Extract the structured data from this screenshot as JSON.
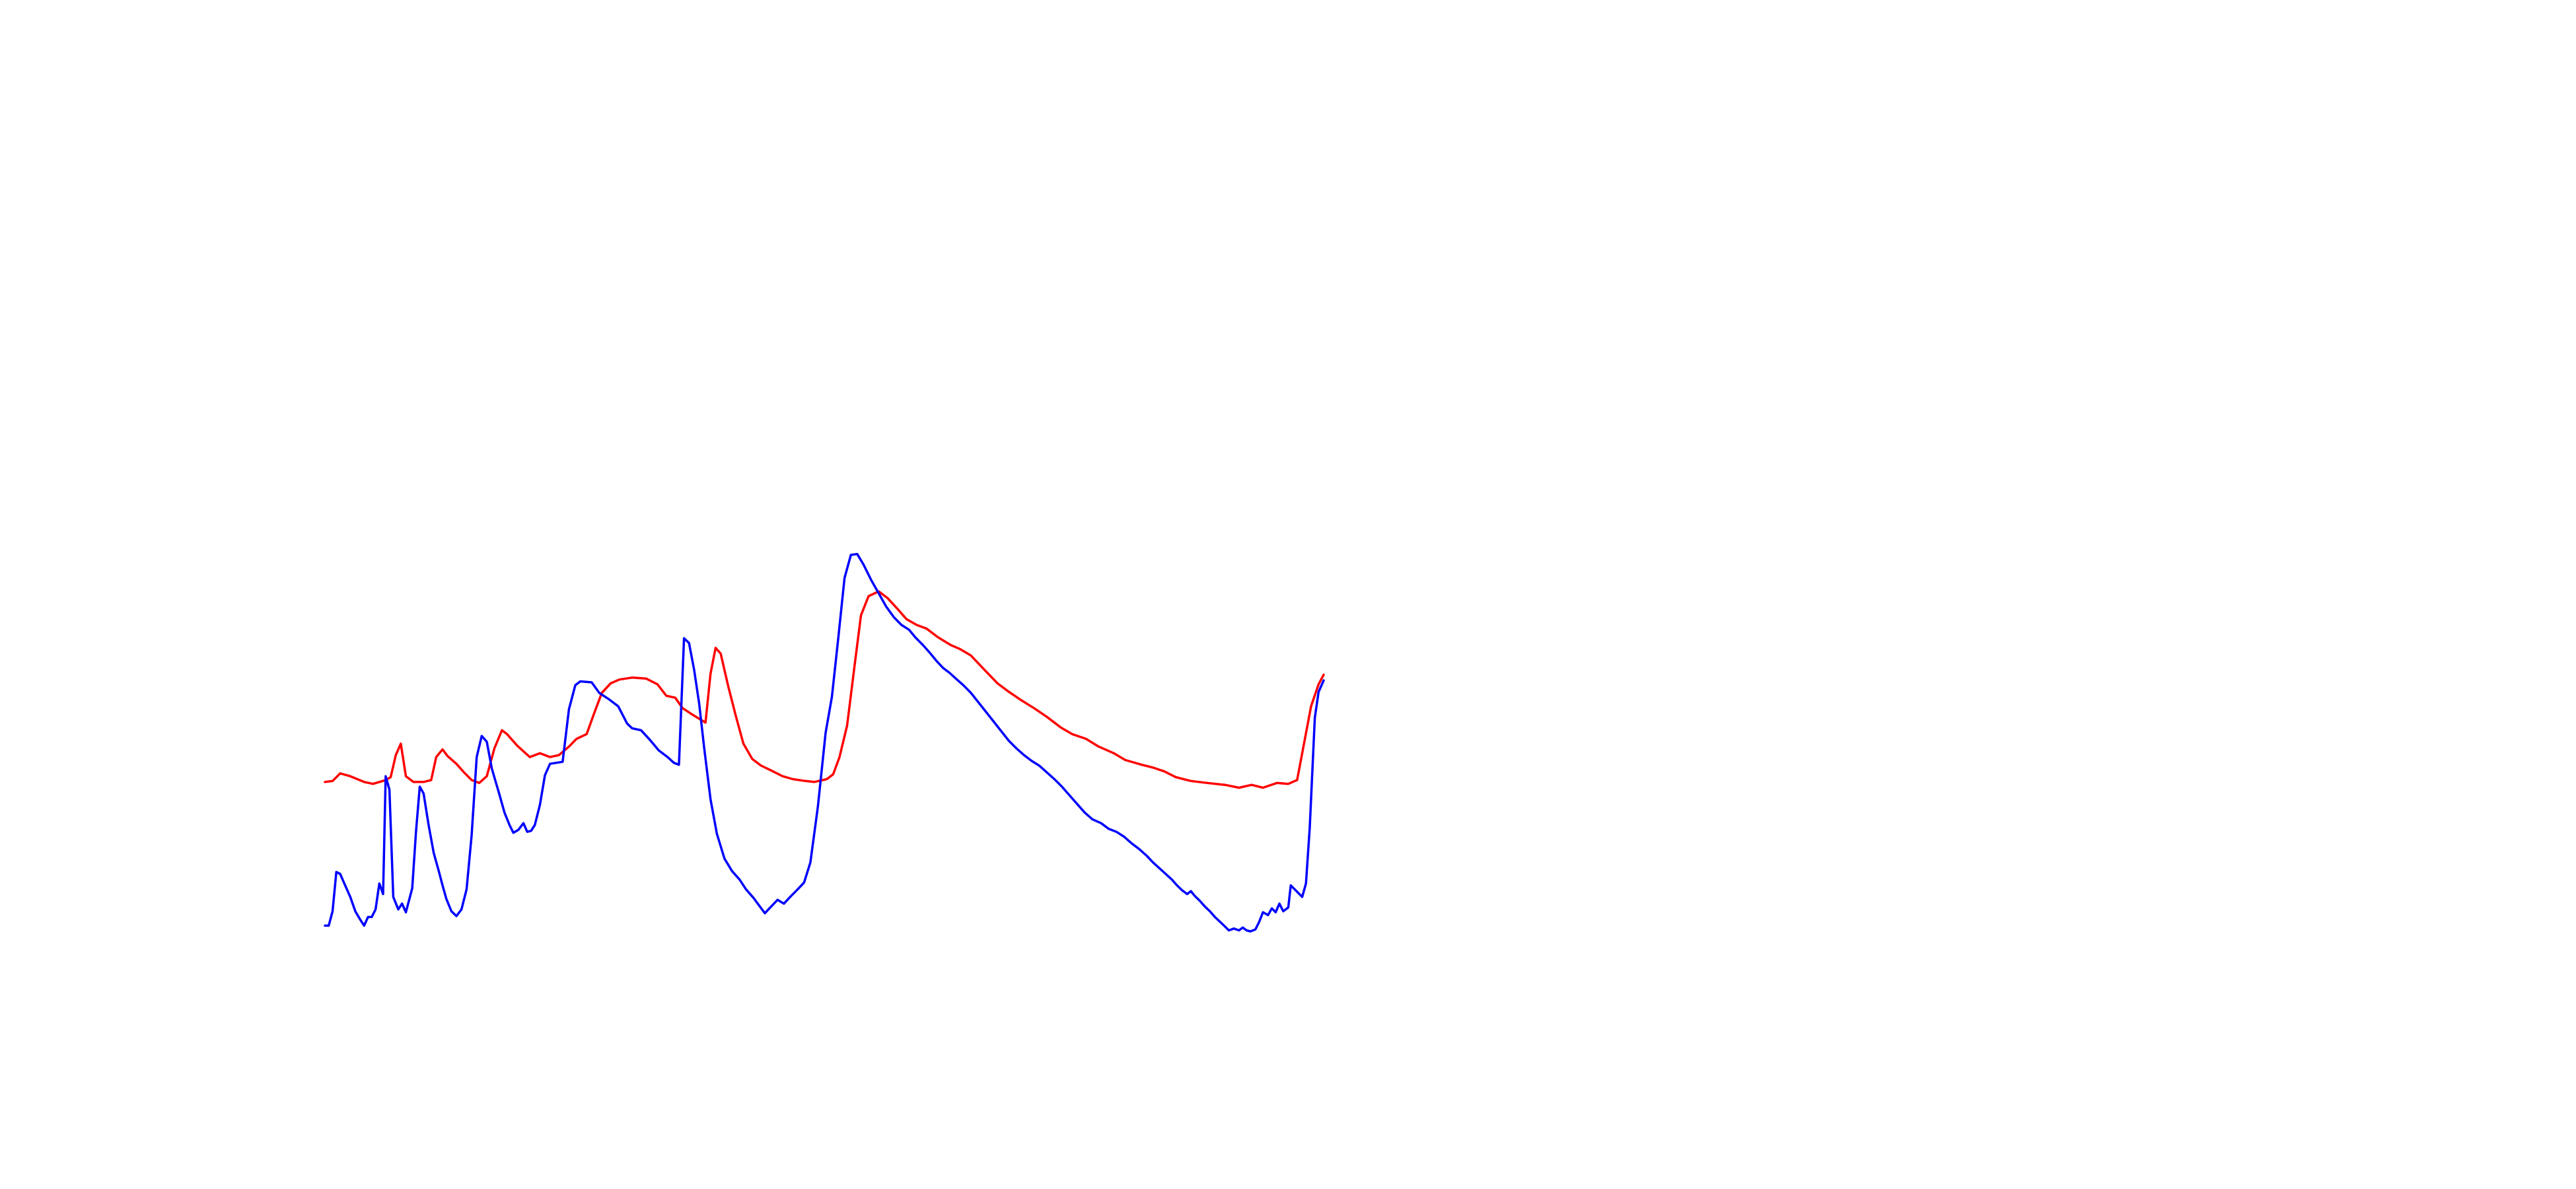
{
  "chart_data": {
    "type": "line",
    "grid": false,
    "legend": "none",
    "x_range": [
      0,
      100
    ],
    "y_range": [
      0,
      100
    ],
    "series": [
      {
        "color": "#ff0000",
        "points": [
          [
            0,
            15.6
          ],
          [
            0.6,
            15.7
          ],
          [
            1.2,
            16.5
          ],
          [
            2.0,
            16.2
          ],
          [
            3.1,
            15.6
          ],
          [
            3.8,
            15.4
          ],
          [
            4.8,
            15.8
          ],
          [
            5.2,
            16.1
          ],
          [
            5.6,
            18.4
          ],
          [
            6.0,
            19.6
          ],
          [
            6.4,
            16.2
          ],
          [
            7.0,
            15.6
          ],
          [
            7.8,
            15.6
          ],
          [
            8.4,
            15.8
          ],
          [
            8.8,
            18.2
          ],
          [
            9.3,
            19.0
          ],
          [
            9.7,
            18.3
          ],
          [
            10.4,
            17.5
          ],
          [
            11.0,
            16.6
          ],
          [
            11.6,
            15.8
          ],
          [
            12.2,
            15.5
          ],
          [
            12.8,
            16.2
          ],
          [
            13.4,
            19.1
          ],
          [
            14.0,
            21.0
          ],
          [
            14.4,
            20.6
          ],
          [
            15.2,
            19.4
          ],
          [
            16.2,
            18.2
          ],
          [
            17.0,
            18.6
          ],
          [
            17.8,
            18.2
          ],
          [
            18.5,
            18.4
          ],
          [
            19.3,
            19.3
          ],
          [
            19.9,
            20.1
          ],
          [
            20.7,
            20.6
          ],
          [
            21.3,
            22.8
          ],
          [
            21.9,
            24.9
          ],
          [
            22.6,
            25.9
          ],
          [
            23.3,
            26.3
          ],
          [
            24.3,
            26.5
          ],
          [
            25.4,
            26.4
          ],
          [
            26.3,
            25.8
          ],
          [
            27.0,
            24.6
          ],
          [
            27.7,
            24.4
          ],
          [
            28.3,
            23.3
          ],
          [
            29.1,
            22.6
          ],
          [
            30.1,
            21.8
          ],
          [
            30.5,
            26.9
          ],
          [
            30.9,
            29.6
          ],
          [
            31.3,
            29.0
          ],
          [
            31.9,
            25.6
          ],
          [
            32.5,
            22.5
          ],
          [
            33.1,
            19.6
          ],
          [
            33.8,
            18.0
          ],
          [
            34.5,
            17.3
          ],
          [
            35.3,
            16.8
          ],
          [
            36.2,
            16.2
          ],
          [
            37.0,
            15.9
          ],
          [
            38.0,
            15.7
          ],
          [
            38.7,
            15.6
          ],
          [
            39.7,
            15.9
          ],
          [
            40.2,
            16.4
          ],
          [
            40.7,
            18.2
          ],
          [
            41.3,
            21.5
          ],
          [
            41.9,
            27.8
          ],
          [
            42.4,
            33.0
          ],
          [
            43.0,
            35.0
          ],
          [
            43.8,
            35.5
          ],
          [
            44.5,
            34.8
          ],
          [
            45.2,
            33.8
          ],
          [
            46.0,
            32.6
          ],
          [
            46.8,
            32.0
          ],
          [
            47.6,
            31.6
          ],
          [
            48.5,
            30.7
          ],
          [
            49.5,
            29.9
          ],
          [
            50.2,
            29.5
          ],
          [
            51.1,
            28.8
          ],
          [
            52.1,
            27.4
          ],
          [
            53.2,
            25.9
          ],
          [
            54.0,
            25.1
          ],
          [
            55.0,
            24.2
          ],
          [
            56.1,
            23.3
          ],
          [
            57.1,
            22.4
          ],
          [
            58.2,
            21.3
          ],
          [
            59.1,
            20.6
          ],
          [
            60.2,
            20.1
          ],
          [
            61.2,
            19.3
          ],
          [
            62.4,
            18.6
          ],
          [
            63.3,
            17.9
          ],
          [
            64.6,
            17.4
          ],
          [
            65.5,
            17.1
          ],
          [
            66.4,
            16.7
          ],
          [
            67.3,
            16.1
          ],
          [
            68.5,
            15.7
          ],
          [
            69.8,
            15.5
          ],
          [
            71.2,
            15.3
          ],
          [
            72.3,
            15.0
          ],
          [
            73.3,
            15.3
          ],
          [
            74.2,
            15.0
          ],
          [
            75.3,
            15.5
          ],
          [
            76.2,
            15.4
          ],
          [
            76.9,
            15.8
          ],
          [
            77.4,
            19.3
          ],
          [
            78.0,
            23.5
          ],
          [
            78.6,
            25.8
          ],
          [
            79.0,
            26.8
          ]
        ]
      },
      {
        "color": "#0000ff",
        "points": [
          [
            0,
            0.6
          ],
          [
            0.3,
            0.6
          ],
          [
            0.6,
            2.1
          ],
          [
            0.9,
            6.2
          ],
          [
            1.2,
            6.0
          ],
          [
            1.6,
            4.8
          ],
          [
            2.0,
            3.6
          ],
          [
            2.4,
            2.1
          ],
          [
            2.8,
            1.2
          ],
          [
            3.1,
            0.6
          ],
          [
            3.4,
            1.5
          ],
          [
            3.7,
            1.5
          ],
          [
            4.0,
            2.3
          ],
          [
            4.3,
            5.0
          ],
          [
            4.6,
            3.9
          ],
          [
            4.8,
            16.2
          ],
          [
            5.1,
            14.8
          ],
          [
            5.4,
            3.6
          ],
          [
            5.8,
            2.3
          ],
          [
            6.1,
            2.9
          ],
          [
            6.4,
            2.0
          ],
          [
            6.9,
            4.5
          ],
          [
            7.2,
            10.4
          ],
          [
            7.5,
            15.1
          ],
          [
            7.8,
            14.4
          ],
          [
            8.2,
            11.1
          ],
          [
            8.6,
            8.2
          ],
          [
            9.0,
            6.3
          ],
          [
            9.3,
            4.8
          ],
          [
            9.6,
            3.4
          ],
          [
            10.0,
            2.1
          ],
          [
            10.4,
            1.6
          ],
          [
            10.8,
            2.3
          ],
          [
            11.2,
            4.4
          ],
          [
            11.6,
            10.0
          ],
          [
            12.0,
            18.2
          ],
          [
            12.4,
            20.4
          ],
          [
            12.8,
            19.8
          ],
          [
            13.2,
            17.0
          ],
          [
            13.8,
            14.3
          ],
          [
            14.2,
            12.4
          ],
          [
            14.6,
            11.1
          ],
          [
            14.9,
            10.3
          ],
          [
            15.3,
            10.6
          ],
          [
            15.7,
            11.3
          ],
          [
            16.0,
            10.4
          ],
          [
            16.3,
            10.5
          ],
          [
            16.6,
            11.1
          ],
          [
            17.0,
            13.2
          ],
          [
            17.4,
            16.3
          ],
          [
            17.8,
            17.5
          ],
          [
            18.3,
            17.6
          ],
          [
            18.8,
            17.7
          ],
          [
            19.3,
            23.2
          ],
          [
            19.8,
            25.7
          ],
          [
            20.2,
            26.1
          ],
          [
            21.1,
            26.0
          ],
          [
            21.7,
            24.9
          ],
          [
            22.5,
            24.2
          ],
          [
            23.2,
            23.5
          ],
          [
            23.9,
            21.7
          ],
          [
            24.3,
            21.2
          ],
          [
            25.0,
            21.0
          ],
          [
            25.7,
            20.0
          ],
          [
            26.4,
            18.9
          ],
          [
            27.1,
            18.2
          ],
          [
            27.6,
            17.6
          ],
          [
            28.0,
            17.4
          ],
          [
            28.4,
            30.6
          ],
          [
            28.8,
            30.1
          ],
          [
            29.2,
            27.3
          ],
          [
            29.6,
            23.8
          ],
          [
            30.0,
            19.1
          ],
          [
            30.5,
            13.8
          ],
          [
            31.0,
            10.2
          ],
          [
            31.6,
            7.6
          ],
          [
            32.2,
            6.3
          ],
          [
            32.8,
            5.4
          ],
          [
            33.3,
            4.4
          ],
          [
            33.9,
            3.5
          ],
          [
            34.4,
            2.6
          ],
          [
            34.8,
            1.9
          ],
          [
            35.3,
            2.6
          ],
          [
            35.8,
            3.3
          ],
          [
            36.3,
            2.9
          ],
          [
            36.8,
            3.6
          ],
          [
            37.4,
            4.4
          ],
          [
            37.9,
            5.1
          ],
          [
            38.4,
            7.2
          ],
          [
            39.0,
            13.1
          ],
          [
            39.6,
            20.7
          ],
          [
            40.1,
            24.5
          ],
          [
            40.6,
            30.6
          ],
          [
            41.1,
            36.9
          ],
          [
            41.6,
            39.3
          ],
          [
            42.1,
            39.4
          ],
          [
            42.6,
            38.3
          ],
          [
            43.2,
            36.7
          ],
          [
            43.8,
            35.3
          ],
          [
            44.4,
            33.9
          ],
          [
            45.0,
            32.8
          ],
          [
            45.6,
            32.0
          ],
          [
            46.2,
            31.5
          ],
          [
            46.7,
            30.7
          ],
          [
            47.3,
            29.9
          ],
          [
            47.9,
            29.0
          ],
          [
            48.4,
            28.2
          ],
          [
            48.9,
            27.5
          ],
          [
            49.4,
            27.0
          ],
          [
            49.9,
            26.4
          ],
          [
            50.5,
            25.7
          ],
          [
            51.1,
            24.9
          ],
          [
            51.7,
            23.9
          ],
          [
            52.3,
            22.9
          ],
          [
            52.9,
            21.9
          ],
          [
            53.5,
            20.9
          ],
          [
            54.1,
            19.9
          ],
          [
            54.7,
            19.1
          ],
          [
            55.3,
            18.4
          ],
          [
            55.9,
            17.8
          ],
          [
            56.5,
            17.3
          ],
          [
            57.1,
            16.6
          ],
          [
            57.7,
            15.9
          ],
          [
            58.3,
            15.1
          ],
          [
            58.9,
            14.2
          ],
          [
            59.5,
            13.3
          ],
          [
            60.1,
            12.4
          ],
          [
            60.7,
            11.7
          ],
          [
            61.4,
            11.3
          ],
          [
            62.0,
            10.7
          ],
          [
            62.6,
            10.4
          ],
          [
            63.2,
            9.9
          ],
          [
            63.8,
            9.2
          ],
          [
            64.4,
            8.6
          ],
          [
            65.0,
            7.9
          ],
          [
            65.5,
            7.2
          ],
          [
            66.0,
            6.6
          ],
          [
            66.5,
            6.0
          ],
          [
            67.0,
            5.4
          ],
          [
            67.4,
            4.8
          ],
          [
            67.8,
            4.3
          ],
          [
            68.2,
            3.9
          ],
          [
            68.5,
            4.2
          ],
          [
            68.8,
            3.7
          ],
          [
            69.2,
            3.2
          ],
          [
            69.6,
            2.6
          ],
          [
            70.0,
            2.1
          ],
          [
            70.4,
            1.5
          ],
          [
            70.8,
            1.0
          ],
          [
            71.2,
            0.5
          ],
          [
            71.5,
            0.1
          ],
          [
            71.9,
            0.3
          ],
          [
            72.3,
            0.1
          ],
          [
            72.6,
            0.4
          ],
          [
            72.9,
            0.1
          ],
          [
            73.2,
            0.0
          ],
          [
            73.6,
            0.2
          ],
          [
            73.9,
            1.0
          ],
          [
            74.2,
            2.0
          ],
          [
            74.6,
            1.7
          ],
          [
            74.9,
            2.4
          ],
          [
            75.2,
            2.0
          ],
          [
            75.5,
            2.9
          ],
          [
            75.8,
            2.1
          ],
          [
            76.2,
            2.5
          ],
          [
            76.4,
            4.8
          ],
          [
            76.7,
            4.4
          ],
          [
            77.0,
            4.0
          ],
          [
            77.3,
            3.6
          ],
          [
            77.6,
            5.0
          ],
          [
            77.9,
            10.8
          ],
          [
            78.3,
            22.3
          ],
          [
            78.6,
            25.0
          ],
          [
            79.0,
            26.2
          ]
        ]
      }
    ]
  }
}
